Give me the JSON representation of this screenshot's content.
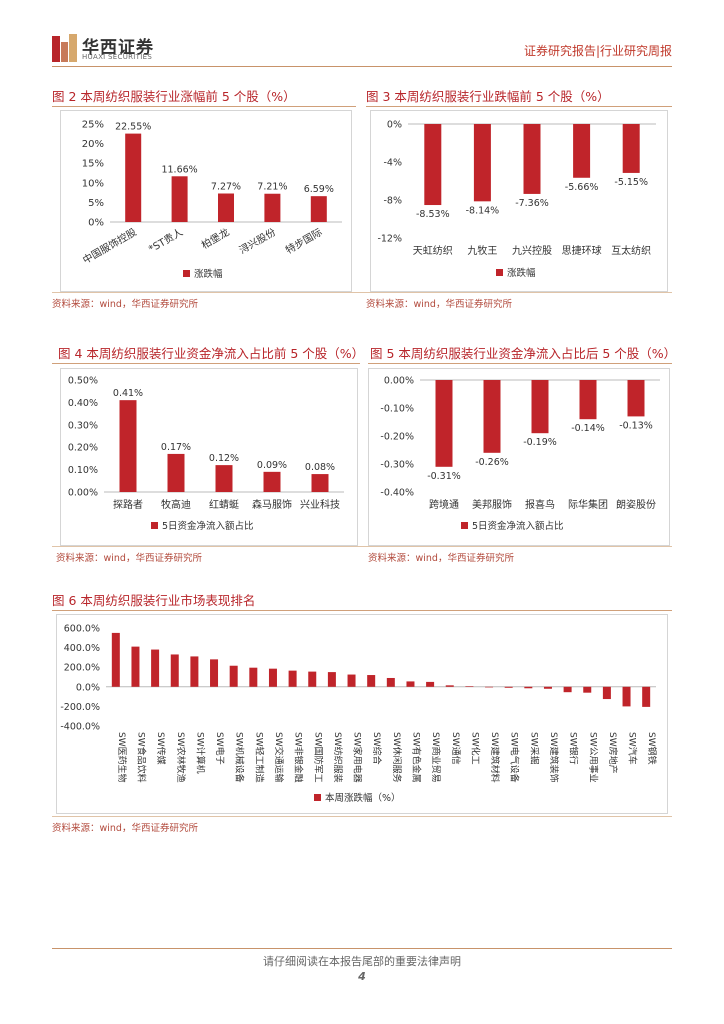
{
  "header": {
    "logo_cn": "华西证券",
    "logo_en": "HUAXI SECURITIES",
    "right_text": "证券研究报告|行业研究周报",
    "accent": "#b8252a"
  },
  "footer": {
    "disclaimer": "请仔细阅读在本报告尾部的重要法律声明",
    "page_number": "4"
  },
  "source_note": "资料来源：wind，华西证券研究所",
  "chart_data": [
    {
      "id": "fig2",
      "type": "bar",
      "title": "图 2 本周纺织服装行业涨幅前 5 个股（%）",
      "categories": [
        "中国服饰控股",
        "*ST贵人",
        "柏堡龙",
        "浔兴股份",
        "特步国际"
      ],
      "values": [
        22.55,
        11.66,
        7.27,
        7.21,
        6.59
      ],
      "data_labels": [
        "22.55%",
        "11.66%",
        "7.27%",
        "7.21%",
        "6.59%"
      ],
      "yticks": [
        "25%",
        "20%",
        "15%",
        "10%",
        "5%",
        "0%"
      ],
      "ylim": [
        0,
        25
      ],
      "legend": "涨跌幅",
      "color": "#c0242a"
    },
    {
      "id": "fig3",
      "type": "bar",
      "title": "图 3 本周纺织服装行业跌幅前 5 个股（%）",
      "categories": [
        "天虹纺织",
        "九牧王",
        "九兴控股",
        "思捷环球",
        "互太纺织"
      ],
      "values": [
        -8.53,
        -8.14,
        -7.36,
        -5.66,
        -5.15
      ],
      "data_labels": [
        "-8.53%",
        "-8.14%",
        "-7.36%",
        "-5.66%",
        "-5.15%"
      ],
      "yticks": [
        "0%",
        "-4%",
        "-8%",
        "-12%"
      ],
      "ylim": [
        -12,
        0
      ],
      "legend": "涨跌幅",
      "color": "#c0242a"
    },
    {
      "id": "fig4",
      "type": "bar",
      "title": "图 4 本周纺织服装行业资金净流入占比前 5 个股（%）",
      "categories": [
        "探路者",
        "牧高迪",
        "红蜻蜓",
        "森马服饰",
        "兴业科技"
      ],
      "values": [
        0.41,
        0.17,
        0.12,
        0.09,
        0.08
      ],
      "data_labels": [
        "0.41%",
        "0.17%",
        "0.12%",
        "0.09%",
        "0.08%"
      ],
      "yticks": [
        "0.50%",
        "0.40%",
        "0.30%",
        "0.20%",
        "0.10%",
        "0.00%"
      ],
      "ylim": [
        0,
        0.5
      ],
      "legend": "5日资金净流入额占比",
      "color": "#c0242a"
    },
    {
      "id": "fig5",
      "type": "bar",
      "title": "图 5 本周纺织服装行业资金净流入占比后 5 个股（%）",
      "categories": [
        "跨境通",
        "美邦服饰",
        "报喜鸟",
        "际华集团",
        "朗姿股份"
      ],
      "values": [
        -0.31,
        -0.26,
        -0.19,
        -0.14,
        -0.13
      ],
      "data_labels": [
        "-0.31%",
        "-0.26%",
        "-0.19%",
        "-0.14%",
        "-0.13%"
      ],
      "yticks": [
        "0.00%",
        "-0.10%",
        "-0.20%",
        "-0.30%",
        "-0.40%"
      ],
      "ylim": [
        -0.4,
        0
      ],
      "legend": "5日资金净流入额占比",
      "color": "#c0242a"
    },
    {
      "id": "fig6",
      "type": "bar",
      "title": "图 6 本周纺织服装行业市场表现排名",
      "categories": [
        "SW医药生物",
        "SW食品饮料",
        "SW传媒",
        "SW农林牧渔",
        "SW计算机",
        "SW电子",
        "SW机械设备",
        "SW轻工制造",
        "SW交通运输",
        "SW非银金融",
        "SW国防军工",
        "SW纺织服装",
        "SW家用电器",
        "SW综合",
        "SW休闲服务",
        "SW有色金属",
        "SW商业贸易",
        "SW通信",
        "SW化工",
        "SW建筑材料",
        "SW电气设备",
        "SW采掘",
        "SW建筑装饰",
        "SW银行",
        "SW公用事业",
        "SW房地产",
        "SW汽车",
        "SW钢铁"
      ],
      "values": [
        550,
        410,
        380,
        330,
        310,
        280,
        215,
        195,
        185,
        165,
        155,
        150,
        125,
        120,
        90,
        55,
        50,
        15,
        5,
        -5,
        -10,
        -15,
        -20,
        -55,
        -60,
        -125,
        -200,
        -205
      ],
      "yticks": [
        "600.0%",
        "400.0%",
        "200.0%",
        "0.0%",
        "-200.0%",
        "-400.0%"
      ],
      "ylim": [
        -400,
        600
      ],
      "legend": "本周涨跌幅（%）",
      "color": "#c0242a"
    }
  ]
}
